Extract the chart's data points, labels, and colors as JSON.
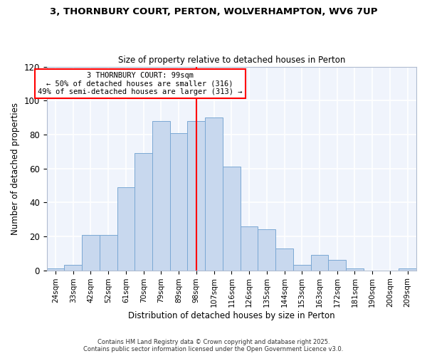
{
  "title_line1": "3, THORNBURY COURT, PERTON, WOLVERHAMPTON, WV6 7UP",
  "title_line2": "Size of property relative to detached houses in Perton",
  "xlabel": "Distribution of detached houses by size in Perton",
  "ylabel": "Number of detached properties",
  "bar_labels": [
    "24sqm",
    "33sqm",
    "42sqm",
    "52sqm",
    "61sqm",
    "70sqm",
    "79sqm",
    "89sqm",
    "98sqm",
    "107sqm",
    "116sqm",
    "126sqm",
    "135sqm",
    "144sqm",
    "153sqm",
    "163sqm",
    "172sqm",
    "181sqm",
    "190sqm",
    "200sqm",
    "209sqm"
  ],
  "bar_values": [
    1,
    3,
    21,
    21,
    49,
    69,
    88,
    81,
    88,
    90,
    61,
    26,
    24,
    13,
    3,
    9,
    6,
    1,
    0,
    0,
    1
  ],
  "bar_color": "#c8d8ee",
  "bar_edge_color": "#7aa8d4",
  "vline_x": 8,
  "vline_color": "red",
  "annotation_title": "3 THORNBURY COURT: 99sqm",
  "annotation_line1": "← 50% of detached houses are smaller (316)",
  "annotation_line2": "49% of semi-detached houses are larger (313) →",
  "annotation_box_color": "white",
  "annotation_box_edge": "red",
  "ylim": [
    0,
    120
  ],
  "yticks": [
    0,
    20,
    40,
    60,
    80,
    100,
    120
  ],
  "footer1": "Contains HM Land Registry data © Crown copyright and database right 2025.",
  "footer2": "Contains public sector information licensed under the Open Government Licence v3.0.",
  "bg_color": "#ffffff",
  "plot_bg_color": "#f0f4fc",
  "grid_color": "#ffffff"
}
